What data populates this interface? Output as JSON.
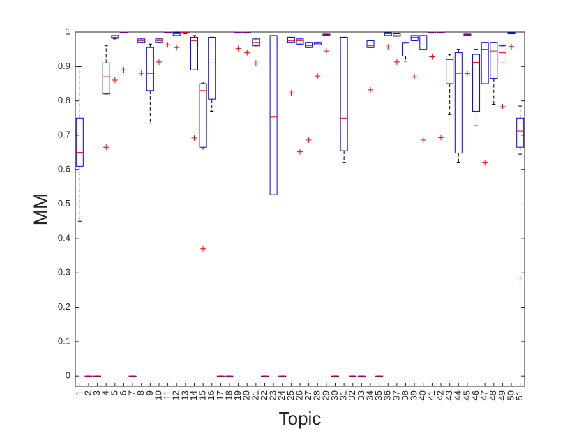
{
  "chart_data": {
    "type": "box",
    "xlabel": "Topic",
    "ylabel": "MM",
    "categories": [
      "1",
      "2",
      "3",
      "4",
      "5",
      "6",
      "7",
      "8",
      "9",
      "10",
      "11",
      "12",
      "13",
      "14",
      "15",
      "16",
      "17",
      "18",
      "19",
      "20",
      "21",
      "22",
      "23",
      "24",
      "25",
      "26",
      "27",
      "28",
      "29",
      "30",
      "31",
      "32",
      "33",
      "34",
      "35",
      "36",
      "37",
      "38",
      "39",
      "40",
      "41",
      "42",
      "43",
      "44",
      "45",
      "46",
      "47",
      "48",
      "49",
      "50",
      "51"
    ],
    "ylim": [
      -0.03,
      1
    ],
    "yticks": [
      0,
      0.1,
      0.2,
      0.3,
      0.4,
      0.5,
      0.6,
      0.7,
      0.8,
      0.9,
      1
    ],
    "box_color": "#0000ff",
    "median_color": "#ff0000",
    "whisker_color": "#000000",
    "outlier_color": "#ff0000",
    "boxes": [
      {
        "min": 0.45,
        "q1": 0.61,
        "median": 0.65,
        "q3": 0.75,
        "max": 0.9,
        "outliers": []
      },
      {
        "min": 0,
        "q1": 0,
        "median": 0,
        "q3": 0,
        "max": 0,
        "outliers": []
      },
      {
        "min": 0,
        "q1": 0,
        "median": 0,
        "q3": 0,
        "max": 0,
        "outliers": []
      },
      {
        "min": 0.82,
        "q1": 0.82,
        "median": 0.87,
        "q3": 0.91,
        "max": 0.96,
        "outliers": [
          0.665
        ]
      },
      {
        "min": 0.98,
        "q1": 0.982,
        "median": 0.985,
        "q3": 0.99,
        "max": 0.99,
        "outliers": [
          0.86
        ]
      },
      {
        "min": 0.998,
        "q1": 0.998,
        "median": 1,
        "q3": 1,
        "max": 1,
        "outliers": [
          0.89
        ]
      },
      {
        "min": 0,
        "q1": 0,
        "median": 0,
        "q3": 0,
        "max": 0,
        "outliers": []
      },
      {
        "min": 0.97,
        "q1": 0.97,
        "median": 0.975,
        "q3": 0.98,
        "max": 0.98,
        "outliers": [
          0.88
        ]
      },
      {
        "min": 0.735,
        "q1": 0.83,
        "median": 0.88,
        "q3": 0.955,
        "max": 0.965,
        "outliers": []
      },
      {
        "min": 0.97,
        "q1": 0.97,
        "median": 0.975,
        "q3": 0.98,
        "max": 0.98,
        "outliers": [
          0.913
        ]
      },
      {
        "min": 0.998,
        "q1": 0.998,
        "median": 1,
        "q3": 1,
        "max": 1,
        "outliers": [
          0.963
        ]
      },
      {
        "min": 0.99,
        "q1": 0.99,
        "median": 0.995,
        "q3": 0.998,
        "max": 1,
        "outliers": [
          0.955
        ]
      },
      {
        "min": 0.995,
        "q1": 0.997,
        "median": 0.999,
        "q3": 1,
        "max": 1,
        "outliers": []
      },
      {
        "min": 0.89,
        "q1": 0.89,
        "median": 0.975,
        "q3": 0.985,
        "max": 0.99,
        "outliers": [
          0.692
        ]
      },
      {
        "min": 0.66,
        "q1": 0.665,
        "median": 0.83,
        "q3": 0.85,
        "max": 0.855,
        "outliers": [
          0.37
        ]
      },
      {
        "min": 0.77,
        "q1": 0.805,
        "median": 0.91,
        "q3": 0.985,
        "max": 0.985,
        "outliers": []
      },
      {
        "min": 0,
        "q1": 0,
        "median": 0,
        "q3": 0,
        "max": 0,
        "outliers": []
      },
      {
        "min": 0,
        "q1": 0,
        "median": 0,
        "q3": 0,
        "max": 0,
        "outliers": []
      },
      {
        "min": 0.998,
        "q1": 0.998,
        "median": 1,
        "q3": 1,
        "max": 1,
        "outliers": [
          0.952
        ]
      },
      {
        "min": 0.998,
        "q1": 0.998,
        "median": 1,
        "q3": 1,
        "max": 1,
        "outliers": [
          0.94
        ]
      },
      {
        "min": 0.96,
        "q1": 0.96,
        "median": 0.97,
        "q3": 0.98,
        "max": 0.98,
        "outliers": [
          0.91
        ]
      },
      {
        "min": 0,
        "q1": 0,
        "median": 0,
        "q3": 0,
        "max": 0,
        "outliers": []
      },
      {
        "min": 0.527,
        "q1": 0.527,
        "median": 0.753,
        "q3": 0.99,
        "max": 0.99,
        "outliers": []
      },
      {
        "min": 0,
        "q1": 0,
        "median": 0,
        "q3": 0,
        "max": 0,
        "outliers": []
      },
      {
        "min": 0.97,
        "q1": 0.97,
        "median": 0.975,
        "q3": 0.985,
        "max": 0.985,
        "outliers": [
          0.823
        ]
      },
      {
        "min": 0.965,
        "q1": 0.965,
        "median": 0.975,
        "q3": 0.98,
        "max": 0.98,
        "outliers": [
          0.652
        ]
      },
      {
        "min": 0.955,
        "q1": 0.955,
        "median": 0.96,
        "q3": 0.97,
        "max": 0.97,
        "outliers": [
          0.686
        ]
      },
      {
        "min": 0.963,
        "q1": 0.963,
        "median": 0.967,
        "q3": 0.97,
        "max": 0.97,
        "outliers": [
          0.872
        ]
      },
      {
        "min": 0.99,
        "q1": 0.99,
        "median": 0.992,
        "q3": 0.994,
        "max": 0.994,
        "outliers": [
          0.945
        ]
      },
      {
        "min": 0,
        "q1": 0,
        "median": 0,
        "q3": 0,
        "max": 0,
        "outliers": []
      },
      {
        "min": 0.62,
        "q1": 0.655,
        "median": 0.75,
        "q3": 0.985,
        "max": 0.985,
        "outliers": []
      },
      {
        "min": 0,
        "q1": 0,
        "median": 0,
        "q3": 0,
        "max": 0,
        "outliers": []
      },
      {
        "min": 0,
        "q1": 0,
        "median": 0,
        "q3": 0,
        "max": 0,
        "outliers": []
      },
      {
        "min": 0.955,
        "q1": 0.955,
        "median": 0.96,
        "q3": 0.975,
        "max": 0.975,
        "outliers": [
          0.832
        ]
      },
      {
        "min": 0,
        "q1": 0,
        "median": 0,
        "q3": 0,
        "max": 0,
        "outliers": []
      },
      {
        "min": 0.99,
        "q1": 0.99,
        "median": 0.995,
        "q3": 0.998,
        "max": 0.998,
        "outliers": [
          0.957
        ]
      },
      {
        "min": 0.988,
        "q1": 0.988,
        "median": 0.99,
        "q3": 0.995,
        "max": 0.995,
        "outliers": [
          0.913
        ]
      },
      {
        "min": 0.915,
        "q1": 0.93,
        "median": 0.968,
        "q3": 0.97,
        "max": 0.97,
        "outliers": []
      },
      {
        "min": 0.975,
        "q1": 0.975,
        "median": 0.985,
        "q3": 0.99,
        "max": 0.99,
        "outliers": [
          0.87
        ]
      },
      {
        "min": 0.95,
        "q1": 0.95,
        "median": 0.95,
        "q3": 0.99,
        "max": 0.99,
        "outliers": [
          0.686
        ]
      },
      {
        "min": 0.998,
        "q1": 0.998,
        "median": 1,
        "q3": 1,
        "max": 1,
        "outliers": [
          0.928
        ]
      },
      {
        "min": 0.998,
        "q1": 0.998,
        "median": 1,
        "q3": 1,
        "max": 1,
        "outliers": [
          0.693
        ]
      },
      {
        "min": 0.76,
        "q1": 0.85,
        "median": 0.92,
        "q3": 0.93,
        "max": 0.935,
        "outliers": []
      },
      {
        "min": 0.62,
        "q1": 0.648,
        "median": 0.88,
        "q3": 0.94,
        "max": 0.95,
        "outliers": []
      },
      {
        "min": 0.99,
        "q1": 0.99,
        "median": 0.992,
        "q3": 0.994,
        "max": 0.994,
        "outliers": [
          0.879
        ]
      },
      {
        "min": 0.728,
        "q1": 0.77,
        "median": 0.912,
        "q3": 0.935,
        "max": 0.95,
        "outliers": []
      },
      {
        "min": 0.85,
        "q1": 0.85,
        "median": 0.95,
        "q3": 0.97,
        "max": 0.97,
        "outliers": [
          0.62
        ]
      },
      {
        "min": 0.79,
        "q1": 0.865,
        "median": 0.945,
        "q3": 0.97,
        "max": 0.97,
        "outliers": []
      },
      {
        "min": 0.91,
        "q1": 0.91,
        "median": 0.94,
        "q3": 0.96,
        "max": 0.96,
        "outliers": [
          0.783
        ]
      },
      {
        "min": 0.995,
        "q1": 0.995,
        "median": 0.997,
        "q3": 0.998,
        "max": 0.998,
        "outliers": [
          0.958
        ]
      },
      {
        "min": 0.645,
        "q1": 0.665,
        "median": 0.712,
        "q3": 0.75,
        "max": 0.785,
        "outliers": [
          0.285
        ]
      }
    ]
  }
}
